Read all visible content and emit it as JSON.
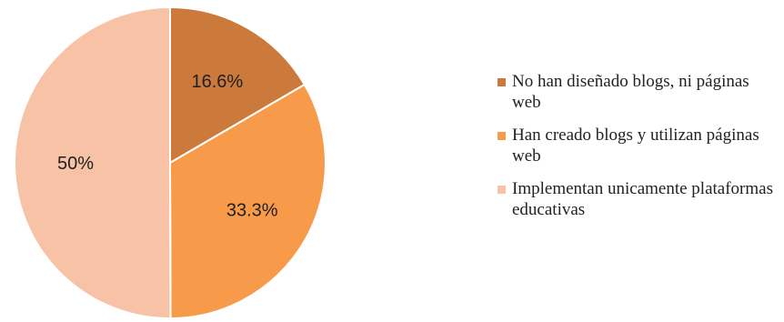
{
  "chart_data": {
    "type": "pie",
    "title": "",
    "slices": [
      {
        "label": "No han diseñado blogs, ni páginas web",
        "value": 16.6,
        "display": "16.6%",
        "color": "#cc7a3b"
      },
      {
        "label": "Han creado blogs y utilizan páginas web",
        "value": 33.3,
        "display": "33.3%",
        "color": "#f79a4a"
      },
      {
        "label": "Implementan unicamente plataformas educativas",
        "value": 50,
        "display": "50%",
        "color": "#f8c2a6"
      }
    ],
    "legend_position": "right"
  }
}
